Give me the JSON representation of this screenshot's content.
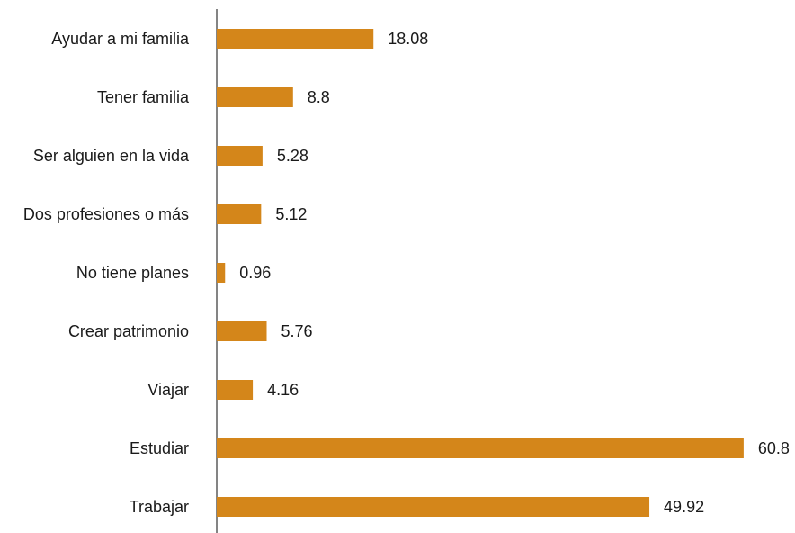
{
  "chart_data": {
    "type": "bar",
    "orientation": "horizontal",
    "categories": [
      "Ayudar a mi familia",
      "Tener familia",
      "Ser alguien en la vida",
      "Dos profesiones o más",
      "No tiene planes",
      "Crear patrimonio",
      "Viajar",
      "Estudiar",
      "Trabajar"
    ],
    "values": [
      18.08,
      8.8,
      5.28,
      5.12,
      0.96,
      5.76,
      4.16,
      60.8,
      49.92
    ],
    "color": "#d4861a",
    "xlim": [
      0,
      66
    ]
  }
}
